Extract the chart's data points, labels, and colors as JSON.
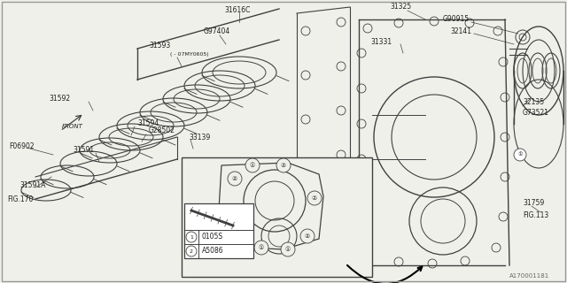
{
  "bg_color": "#f0f0eb",
  "line_color": "#404040",
  "text_color": "#202020",
  "diagram_id": "A170001181",
  "legend_items": [
    {
      "num": "1",
      "code": "0105S"
    },
    {
      "num": "2",
      "code": "A5086"
    }
  ]
}
